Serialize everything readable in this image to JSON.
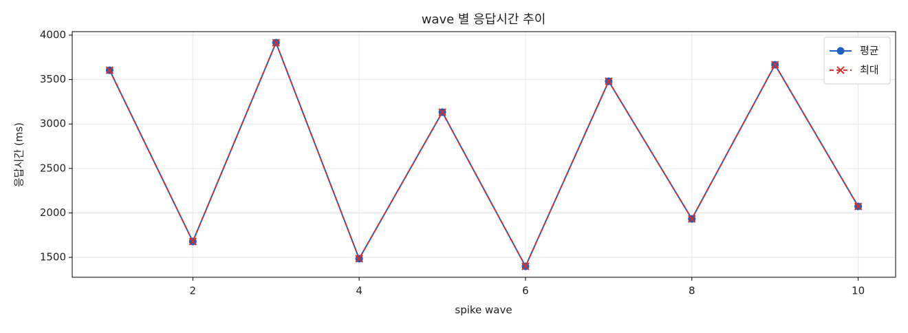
{
  "chart_data": {
    "type": "line",
    "title": "wave 별 응답시간 추이",
    "x_label": "spike wave",
    "y_label": "응답시간 (ms)",
    "x": [
      1,
      2,
      3,
      4,
      5,
      6,
      7,
      8,
      9,
      10
    ],
    "series": [
      {
        "name": "평균",
        "color": "#1f5fbf",
        "marker": "o",
        "linestyle": "solid",
        "values": [
          3605,
          1678,
          3915,
          1485,
          3133,
          1399,
          3481,
          1933,
          3667,
          2073
        ]
      },
      {
        "name": "최대",
        "color": "#d32f2f",
        "marker": "x",
        "linestyle": "dashed",
        "values": [
          3605,
          1678,
          3915,
          1485,
          3133,
          1399,
          3481,
          1933,
          3667,
          2073
        ]
      }
    ],
    "xlim": [
      0.55,
      10.45
    ],
    "ylim": [
      1276,
      4039
    ],
    "xticks": [
      2,
      4,
      6,
      8,
      10
    ],
    "yticks": [
      1500,
      2000,
      2500,
      3000,
      3500,
      4000
    ],
    "grid": true,
    "legend": "upper right"
  }
}
